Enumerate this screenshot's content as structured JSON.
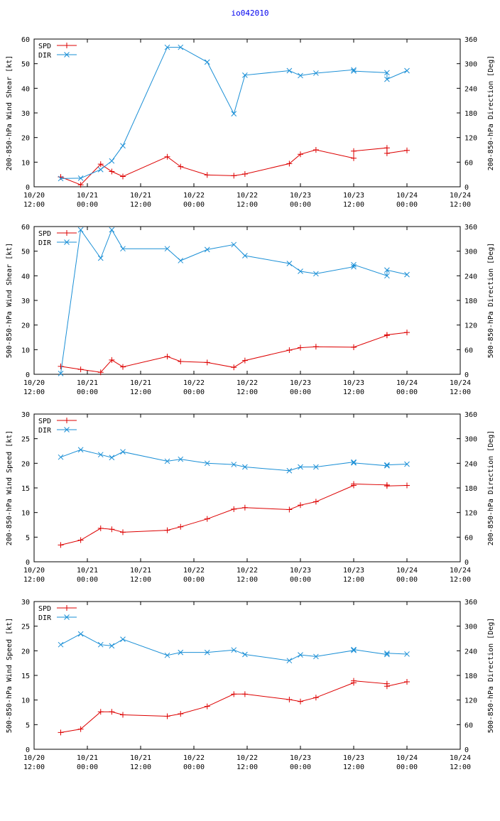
{
  "title": "io042010",
  "colors": {
    "spd": "#dd0000",
    "dir": "#1a8fd6",
    "axis": "#000000"
  },
  "x_ticks": [
    [
      "10/20",
      "12:00"
    ],
    [
      "10/21",
      "00:00"
    ],
    [
      "10/21",
      "12:00"
    ],
    [
      "10/22",
      "00:00"
    ],
    [
      "10/22",
      "12:00"
    ],
    [
      "10/23",
      "00:00"
    ],
    [
      "10/23",
      "12:00"
    ],
    [
      "10/24",
      "00:00"
    ],
    [
      "10/24",
      "12:00"
    ]
  ],
  "chart_data": [
    {
      "type": "line",
      "ylabel": "200-850-hPa Wind Shear [kt]",
      "y2label": "200-850-hPa Direction [Deg]",
      "ylim": [
        0,
        60
      ],
      "yticks": [
        0,
        10,
        20,
        30,
        40,
        50,
        60
      ],
      "y2lim": [
        0,
        360
      ],
      "y2ticks": [
        0,
        60,
        120,
        180,
        240,
        300,
        360
      ],
      "xlim": [
        0,
        96
      ],
      "legend": [
        "SPD",
        "DIR"
      ],
      "series": [
        {
          "name": "SPD",
          "axis": "left",
          "x": [
            6,
            10.5,
            15,
            17.5,
            20,
            30,
            33,
            39,
            45,
            47.5,
            57.5,
            60,
            63.5,
            72,
            72,
            79.5,
            79.5,
            84
          ],
          "y": [
            4,
            0.8,
            9.2,
            6.2,
            4.2,
            12.2,
            8.2,
            4.8,
            4.5,
            5.2,
            9.4,
            13.2,
            15,
            11.6,
            14.5,
            15.8,
            13.6,
            14.8
          ]
        },
        {
          "name": "DIR",
          "axis": "right",
          "x": [
            6,
            10.5,
            15,
            17.5,
            20,
            30,
            33,
            39,
            45,
            47.5,
            57.5,
            60,
            63.5,
            72,
            72,
            79.5,
            79.5,
            84
          ],
          "y": [
            20,
            21,
            42,
            63,
            100,
            340,
            340,
            304,
            178,
            272,
            283,
            271,
            277,
            285,
            282,
            278,
            262,
            283
          ]
        }
      ]
    },
    {
      "type": "line",
      "ylabel": "500-850-hPa Wind Shear [kt]",
      "y2label": "500-850-hPa Direction [Deg]",
      "ylim": [
        0,
        60
      ],
      "yticks": [
        0,
        10,
        20,
        30,
        40,
        50,
        60
      ],
      "y2lim": [
        0,
        360
      ],
      "y2ticks": [
        0,
        60,
        120,
        180,
        240,
        300,
        360
      ],
      "xlim": [
        0,
        96
      ],
      "legend": [
        "SPD",
        "DIR"
      ],
      "series": [
        {
          "name": "SPD",
          "axis": "left",
          "x": [
            6,
            10.5,
            15,
            17.5,
            20,
            30,
            33,
            39,
            45,
            47.5,
            57.5,
            60,
            63.5,
            72,
            72,
            79.5,
            79.5,
            84
          ],
          "y": [
            3.2,
            2,
            0.8,
            5.8,
            3,
            7.2,
            5.2,
            4.8,
            2.8,
            5.6,
            9.8,
            10.8,
            11.2,
            11,
            11,
            15.8,
            16,
            17
          ]
        },
        {
          "name": "DIR",
          "axis": "right",
          "x": [
            6,
            10.5,
            15,
            17.5,
            20,
            30,
            33,
            39,
            45,
            47.5,
            57.5,
            60,
            63.5,
            72,
            72,
            79.5,
            79.5,
            84
          ],
          "y": [
            2,
            352,
            283,
            352,
            306,
            306,
            277,
            304,
            316,
            289,
            270,
            251,
            245,
            262,
            267,
            240,
            254,
            243
          ]
        }
      ]
    },
    {
      "type": "line",
      "ylabel": "200-850-hPa Wind Speed [kt]",
      "y2label": "200-850-hPa Direction [Deg]",
      "ylim": [
        0,
        30
      ],
      "yticks": [
        0,
        5,
        10,
        15,
        20,
        25,
        30
      ],
      "y2lim": [
        0,
        360
      ],
      "y2ticks": [
        0,
        60,
        120,
        180,
        240,
        300,
        360
      ],
      "xlim": [
        0,
        96
      ],
      "legend": [
        "SPD",
        "DIR"
      ],
      "series": [
        {
          "name": "SPD",
          "axis": "left",
          "x": [
            6,
            10.5,
            15,
            17.5,
            20,
            30,
            33,
            39,
            45,
            47.5,
            57.5,
            60,
            63.5,
            72,
            72,
            79.5,
            79.5,
            84
          ],
          "y": [
            3.4,
            4.4,
            6.8,
            6.6,
            6,
            6.4,
            7.1,
            8.7,
            10.7,
            11,
            10.6,
            11.5,
            12.2,
            15.5,
            15.8,
            15.6,
            15.4,
            15.5
          ]
        },
        {
          "name": "DIR",
          "axis": "right",
          "x": [
            6,
            10.5,
            15,
            17.5,
            20,
            30,
            33,
            39,
            45,
            47.5,
            57.5,
            60,
            63.5,
            72,
            72,
            79.5,
            79.5,
            84
          ],
          "y": [
            255,
            273,
            261,
            254,
            268,
            245,
            250,
            240,
            237,
            231,
            222,
            231,
            231,
            243,
            241,
            234,
            236,
            238
          ]
        }
      ]
    },
    {
      "type": "line",
      "ylabel": "500-850-hPa Wind Speed [kt]",
      "y2label": "500-850-hPa Direction [Deg]",
      "ylim": [
        0,
        30
      ],
      "yticks": [
        0,
        5,
        10,
        15,
        20,
        25,
        30
      ],
      "y2lim": [
        0,
        360
      ],
      "y2ticks": [
        0,
        60,
        120,
        180,
        240,
        300,
        360
      ],
      "xlim": [
        0,
        96
      ],
      "legend": [
        "SPD",
        "DIR"
      ],
      "series": [
        {
          "name": "SPD",
          "axis": "left",
          "x": [
            6,
            10.5,
            15,
            17.5,
            20,
            30,
            33,
            39,
            45,
            47.5,
            57.5,
            60,
            63.5,
            72,
            72,
            79.5,
            79.5,
            84
          ],
          "y": [
            3.4,
            4.1,
            7.6,
            7.6,
            7,
            6.7,
            7.2,
            8.7,
            11.2,
            11.2,
            10.1,
            9.7,
            10.5,
            13.5,
            13.9,
            13.3,
            12.8,
            13.7
          ]
        },
        {
          "name": "DIR",
          "axis": "right",
          "x": [
            6,
            10.5,
            15,
            17.5,
            20,
            30,
            33,
            39,
            45,
            47.5,
            57.5,
            60,
            63.5,
            72,
            72,
            79.5,
            79.5,
            84
          ],
          "y": [
            255,
            281,
            255,
            252,
            268,
            229,
            236,
            236,
            242,
            231,
            216,
            230,
            226,
            241,
            243,
            231,
            234,
            232
          ]
        }
      ]
    }
  ]
}
